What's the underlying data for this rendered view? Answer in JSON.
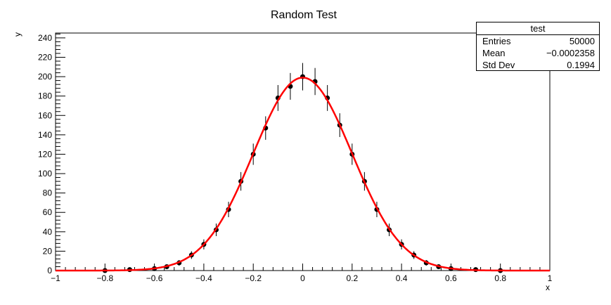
{
  "chart_data": {
    "type": "scatter",
    "title": "Random Test",
    "xlabel": "x",
    "ylabel": "y",
    "xlim": [
      -1,
      1
    ],
    "ylim": [
      0,
      245
    ],
    "x_ticks": [
      -1,
      -0.8,
      -0.6,
      -0.4,
      -0.2,
      0,
      0.2,
      0.4,
      0.6,
      0.8,
      1
    ],
    "x_tick_labels": [
      "−1",
      "−0.8",
      "−0.6",
      "−0.4",
      "−0.2",
      "0",
      "0.2",
      "0.4",
      "0.6",
      "0.8",
      "1"
    ],
    "y_ticks": [
      0,
      20,
      40,
      60,
      80,
      100,
      120,
      140,
      160,
      180,
      200,
      220,
      240
    ],
    "y_tick_labels": [
      "0",
      "20",
      "40",
      "60",
      "80",
      "100",
      "120",
      "140",
      "160",
      "180",
      "200",
      "220",
      "240"
    ],
    "grid": false,
    "series": [
      {
        "kind": "histogram-points-with-error-bars",
        "color": "#000000",
        "x": [
          -0.8,
          -0.7,
          -0.6,
          -0.55,
          -0.5,
          -0.45,
          -0.4,
          -0.35,
          -0.3,
          -0.25,
          -0.2,
          -0.15,
          -0.1,
          -0.05,
          0,
          0.05,
          0.1,
          0.15,
          0.2,
          0.25,
          0.3,
          0.35,
          0.4,
          0.45,
          0.5,
          0.55,
          0.6,
          0.7,
          0.8
        ],
        "y": [
          0,
          1,
          2,
          4,
          8,
          16,
          27,
          42,
          63,
          92,
          120,
          147,
          178,
          190,
          200,
          195,
          178,
          150,
          120,
          92,
          63,
          42,
          27,
          16,
          8,
          4,
          2,
          1,
          0
        ]
      },
      {
        "kind": "gaussian-fit-curve",
        "color": "#ff0000",
        "constant": 199,
        "mean": 0,
        "sigma": 0.2
      }
    ]
  },
  "stats": {
    "title": "test",
    "rows": [
      {
        "label": "Entries",
        "value": "50000"
      },
      {
        "label": "Mean",
        "value": "−0.0002358"
      },
      {
        "label": "Std Dev",
        "value": "0.1994"
      }
    ]
  }
}
